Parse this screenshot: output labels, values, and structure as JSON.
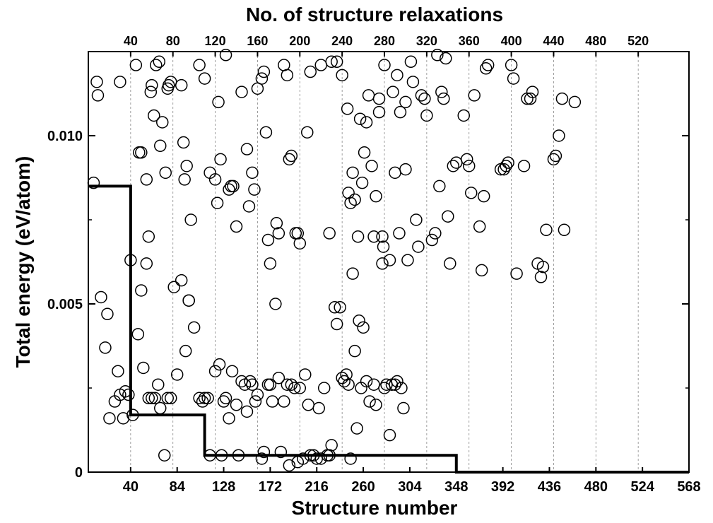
{
  "chart_data": {
    "type": "scatter",
    "title": "",
    "xlabel": "Structure number",
    "ylabel": "Total energy (eV/atom)",
    "top_xlabel": "No. of structure relaxations",
    "xlim": [
      0,
      568
    ],
    "ylim": [
      0,
      0.0125
    ],
    "x_ticks": [
      40,
      84,
      128,
      172,
      216,
      260,
      304,
      348,
      392,
      436,
      480,
      524,
      568
    ],
    "x_tick_labels": [
      "40",
      "84",
      "128",
      "172",
      "216",
      "260",
      "304",
      "348",
      "392",
      "436",
      "480",
      "524",
      "568"
    ],
    "y_ticks": [
      0,
      0.005,
      0.01
    ],
    "y_tick_labels": [
      "0",
      "0.005",
      "0.010"
    ],
    "top_ticks": [
      40,
      80,
      120,
      160,
      200,
      240,
      280,
      320,
      360,
      400,
      440,
      480,
      520
    ],
    "top_tick_labels": [
      "40",
      "80",
      "120",
      "160",
      "200",
      "240",
      "280",
      "320",
      "360",
      "400",
      "440",
      "480",
      "520"
    ],
    "grid": "vertical dashed at top-axis ticks",
    "legend": "none",
    "colors": {
      "marker": "#000000",
      "step_line": "#000000",
      "grid": "#888888"
    },
    "series": [
      {
        "kind": "scatter",
        "marker": "open-circle",
        "points": [
          [
            5,
            0.0086
          ],
          [
            8,
            0.0116
          ],
          [
            9,
            0.0112
          ],
          [
            30,
            0.0116
          ],
          [
            40,
            0.0063
          ],
          [
            45,
            0.0121
          ],
          [
            48,
            0.0095
          ],
          [
            50,
            0.0095
          ],
          [
            55,
            0.0087
          ],
          [
            57,
            0.007
          ],
          [
            59,
            0.0113
          ],
          [
            60,
            0.0115
          ],
          [
            62,
            0.0106
          ],
          [
            64,
            0.0121
          ],
          [
            67,
            0.0122
          ],
          [
            68,
            0.0097
          ],
          [
            70,
            0.0104
          ],
          [
            73,
            0.0089
          ],
          [
            75,
            0.0114
          ],
          [
            76,
            0.0115
          ],
          [
            78,
            0.0116
          ],
          [
            88,
            0.0115
          ],
          [
            90,
            0.0098
          ],
          [
            91,
            0.0087
          ],
          [
            93,
            0.0091
          ],
          [
            95,
            0.0051
          ],
          [
            97,
            0.0075
          ],
          [
            105,
            0.0121
          ],
          [
            110,
            0.0117
          ],
          [
            115,
            0.0089
          ],
          [
            120,
            0.0087
          ],
          [
            122,
            0.008
          ],
          [
            123,
            0.011
          ],
          [
            125,
            0.0093
          ],
          [
            130,
            0.0124
          ],
          [
            133,
            0.0084
          ],
          [
            135,
            0.0085
          ],
          [
            137,
            0.0085
          ],
          [
            140,
            0.0073
          ],
          [
            145,
            0.0113
          ],
          [
            150,
            0.0096
          ],
          [
            152,
            0.0079
          ],
          [
            155,
            0.0089
          ],
          [
            157,
            0.0084
          ],
          [
            160,
            0.0114
          ],
          [
            164,
            0.0117
          ],
          [
            166,
            0.0119
          ],
          [
            168,
            0.0101
          ],
          [
            170,
            0.0069
          ],
          [
            172,
            0.0062
          ],
          [
            178,
            0.0074
          ],
          [
            180,
            0.0071
          ],
          [
            185,
            0.0121
          ],
          [
            188,
            0.0118
          ],
          [
            190,
            0.0093
          ],
          [
            192,
            0.0094
          ],
          [
            196,
            0.0071
          ],
          [
            198,
            0.0071
          ],
          [
            200,
            0.0068
          ],
          [
            207,
            0.0101
          ],
          [
            210,
            0.0119
          ],
          [
            220,
            0.0121
          ],
          [
            228,
            0.0071
          ],
          [
            230,
            0.0122
          ],
          [
            235,
            0.0122
          ],
          [
            240,
            0.0118
          ],
          [
            245,
            0.0108
          ],
          [
            246,
            0.0083
          ],
          [
            248,
            0.008
          ],
          [
            250,
            0.0089
          ],
          [
            252,
            0.0081
          ],
          [
            255,
            0.007
          ],
          [
            257,
            0.0105
          ],
          [
            259,
            0.0086
          ],
          [
            261,
            0.0095
          ],
          [
            263,
            0.0104
          ],
          [
            265,
            0.0112
          ],
          [
            270,
            0.007
          ],
          [
            272,
            0.0082
          ],
          [
            275,
            0.0107
          ],
          [
            278,
            0.007
          ],
          [
            279,
            0.0067
          ],
          [
            280,
            0.0121
          ],
          [
            285,
            0.0063
          ],
          [
            288,
            0.0113
          ],
          [
            290,
            0.0089
          ],
          [
            292,
            0.0118
          ],
          [
            295,
            0.0107
          ],
          [
            300,
            0.009
          ],
          [
            302,
            0.0063
          ],
          [
            305,
            0.0122
          ],
          [
            307,
            0.0116
          ],
          [
            310,
            0.0075
          ],
          [
            312,
            0.0067
          ],
          [
            315,
            0.0112
          ],
          [
            318,
            0.0111
          ],
          [
            320,
            0.0106
          ],
          [
            325,
            0.0069
          ],
          [
            328,
            0.0071
          ],
          [
            330,
            0.0124
          ],
          [
            332,
            0.0085
          ],
          [
            334,
            0.0113
          ],
          [
            336,
            0.0111
          ],
          [
            338,
            0.0123
          ],
          [
            340,
            0.0076
          ],
          [
            342,
            0.0062
          ],
          [
            345,
            0.0091
          ],
          [
            348,
            0.0092
          ],
          [
            355,
            0.0106
          ],
          [
            358,
            0.0093
          ],
          [
            360,
            0.0091
          ],
          [
            362,
            0.0083
          ],
          [
            365,
            0.0112
          ],
          [
            370,
            0.0073
          ],
          [
            372,
            0.006
          ],
          [
            374,
            0.0082
          ],
          [
            376,
            0.012
          ],
          [
            378,
            0.0121
          ],
          [
            390,
            0.009
          ],
          [
            393,
            0.009
          ],
          [
            395,
            0.0091
          ],
          [
            397,
            0.0092
          ],
          [
            400,
            0.0121
          ],
          [
            402,
            0.0117
          ],
          [
            405,
            0.0059
          ],
          [
            412,
            0.0091
          ],
          [
            415,
            0.0111
          ],
          [
            418,
            0.0111
          ],
          [
            420,
            0.0113
          ],
          [
            425,
            0.0062
          ],
          [
            428,
            0.0058
          ],
          [
            430,
            0.0061
          ],
          [
            433,
            0.0072
          ],
          [
            440,
            0.0093
          ],
          [
            442,
            0.0094
          ],
          [
            445,
            0.01
          ],
          [
            448,
            0.0111
          ],
          [
            450,
            0.0072
          ],
          [
            460,
            0.011
          ],
          [
            12,
            0.0052
          ],
          [
            16,
            0.0037
          ],
          [
            18,
            0.0047
          ],
          [
            20,
            0.0016
          ],
          [
            25,
            0.0021
          ],
          [
            28,
            0.003
          ],
          [
            30,
            0.0023
          ],
          [
            33,
            0.0016
          ],
          [
            35,
            0.0024
          ],
          [
            38,
            0.0023
          ],
          [
            42,
            0.0017
          ],
          [
            47,
            0.0041
          ],
          [
            50,
            0.0054
          ],
          [
            52,
            0.0031
          ],
          [
            55,
            0.0062
          ],
          [
            57,
            0.0022
          ],
          [
            60,
            0.0022
          ],
          [
            63,
            0.0022
          ],
          [
            66,
            0.0026
          ],
          [
            68,
            0.0019
          ],
          [
            72,
            0.0005
          ],
          [
            75,
            0.0022
          ],
          [
            78,
            0.0022
          ],
          [
            81,
            0.0055
          ],
          [
            84,
            0.0029
          ],
          [
            88,
            0.0057
          ],
          [
            92,
            0.0036
          ],
          [
            95,
            0.0051
          ],
          [
            100,
            0.0043
          ],
          [
            105,
            0.0022
          ],
          [
            108,
            0.0021
          ],
          [
            110,
            0.0022
          ],
          [
            113,
            0.0022
          ],
          [
            115,
            0.0005
          ],
          [
            120,
            0.003
          ],
          [
            124,
            0.0032
          ],
          [
            126,
            0.0005
          ],
          [
            128,
            0.0021
          ],
          [
            130,
            0.0022
          ],
          [
            133,
            0.0016
          ],
          [
            136,
            0.003
          ],
          [
            140,
            0.002
          ],
          [
            142,
            0.0005
          ],
          [
            145,
            0.0027
          ],
          [
            148,
            0.0026
          ],
          [
            150,
            0.0018
          ],
          [
            153,
            0.0027
          ],
          [
            155,
            0.0026
          ],
          [
            158,
            0.0021
          ],
          [
            160,
            0.0023
          ],
          [
            164,
            0.0004
          ],
          [
            166,
            0.0006
          ],
          [
            170,
            0.0026
          ],
          [
            172,
            0.0026
          ],
          [
            174,
            0.0021
          ],
          [
            177,
            0.005
          ],
          [
            180,
            0.0028
          ],
          [
            182,
            0.0006
          ],
          [
            185,
            0.0021
          ],
          [
            188,
            0.0026
          ],
          [
            190,
            0.0002
          ],
          [
            192,
            0.0026
          ],
          [
            195,
            0.0025
          ],
          [
            198,
            0.0003
          ],
          [
            200,
            0.0025
          ],
          [
            203,
            0.0004
          ],
          [
            205,
            0.0029
          ],
          [
            208,
            0.002
          ],
          [
            210,
            0.0005
          ],
          [
            213,
            0.0005
          ],
          [
            216,
            0.0004
          ],
          [
            218,
            0.0019
          ],
          [
            220,
            0.0004
          ],
          [
            223,
            0.0025
          ],
          [
            226,
            0.0005
          ],
          [
            228,
            0.0005
          ],
          [
            230,
            0.0008
          ],
          [
            233,
            0.0049
          ],
          [
            235,
            0.0044
          ],
          [
            238,
            0.0049
          ],
          [
            240,
            0.0028
          ],
          [
            242,
            0.0027
          ],
          [
            244,
            0.0029
          ],
          [
            246,
            0.0026
          ],
          [
            248,
            0.0004
          ],
          [
            250,
            0.0059
          ],
          [
            252,
            0.0036
          ],
          [
            254,
            0.0013
          ],
          [
            256,
            0.0045
          ],
          [
            258,
            0.0025
          ],
          [
            260,
            0.0043
          ],
          [
            263,
            0.0027
          ],
          [
            266,
            0.0021
          ],
          [
            268,
            0.0091
          ],
          [
            270,
            0.0026
          ],
          [
            272,
            0.002
          ],
          [
            275,
            0.0111
          ],
          [
            278,
            0.0062
          ],
          [
            280,
            0.0025
          ],
          [
            282,
            0.0026
          ],
          [
            285,
            0.0011
          ],
          [
            287,
            0.0026
          ],
          [
            290,
            0.0026
          ],
          [
            292,
            0.0027
          ],
          [
            294,
            0.0071
          ],
          [
            296,
            0.0025
          ],
          [
            298,
            0.0019
          ],
          [
            300,
            0.011
          ]
        ]
      },
      {
        "kind": "step",
        "name": "",
        "points": [
          [
            0,
            0.0085
          ],
          [
            40,
            0.0085
          ],
          [
            40,
            0.0017
          ],
          [
            110,
            0.0017
          ],
          [
            110,
            0.0005
          ],
          [
            348,
            0.0005
          ],
          [
            348,
            0.0
          ],
          [
            568,
            0.0
          ]
        ]
      }
    ]
  }
}
